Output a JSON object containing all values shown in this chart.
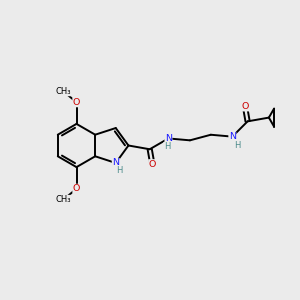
{
  "background_color": "#ebebeb",
  "atom_color_N": "#1a1aff",
  "atom_color_O": "#cc0000",
  "atom_color_H": "#4a8a8a",
  "bond_color": "#000000",
  "bond_width": 1.4,
  "figsize": [
    3.0,
    3.0
  ],
  "dpi": 100,
  "xlim": [
    0,
    10
  ],
  "ylim": [
    0,
    10
  ]
}
